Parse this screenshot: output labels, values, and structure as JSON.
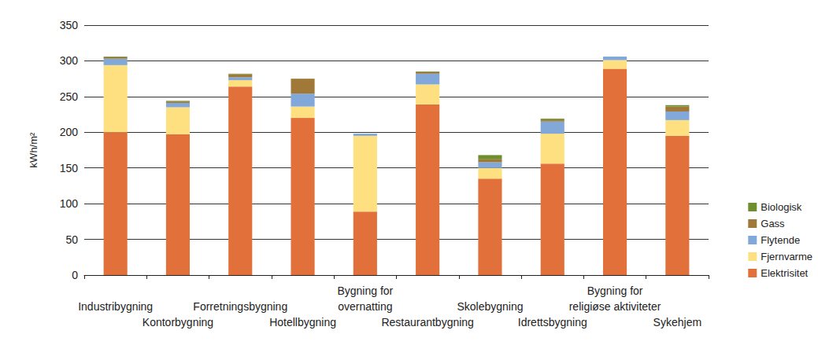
{
  "chart_data": {
    "type": "bar",
    "stacked": true,
    "y_label": "kWh/m²",
    "categories": [
      "Industribygning",
      "Kontorbygning",
      "Forretningsbygning",
      "Hotellbygning",
      "Bygning for\novernatting",
      "Restaurantbygning",
      "Skolebygning",
      "Idrettsbygning",
      "Bygning for\nreligiøse aktiviteter",
      "Sykehjem"
    ],
    "series": [
      {
        "name": "Elektrisitet",
        "color": "#e2703a",
        "values": [
          200,
          197,
          264,
          220,
          89,
          239,
          135,
          156,
          289,
          195
        ]
      },
      {
        "name": "Fjernvarme",
        "color": "#ffe080",
        "values": [
          94,
          38,
          9,
          16,
          106,
          28,
          15,
          42,
          12,
          22
        ]
      },
      {
        "name": "Flytende",
        "color": "#81a8d8",
        "values": [
          9,
          6,
          4,
          18,
          3,
          15,
          8,
          17,
          5,
          12
        ]
      },
      {
        "name": "Gass",
        "color": "#a07838",
        "values": [
          2,
          2,
          4,
          21,
          0,
          2,
          4,
          2,
          0,
          7
        ]
      },
      {
        "name": "Biologisk",
        "color": "#6f8f2e",
        "values": [
          1,
          1,
          1,
          0,
          0,
          1,
          6,
          2,
          0,
          2
        ]
      }
    ],
    "ylim": [
      0,
      350
    ],
    "yticks": [
      0,
      50,
      100,
      150,
      200,
      250,
      300,
      350
    ],
    "grid": true,
    "legend": "right"
  }
}
